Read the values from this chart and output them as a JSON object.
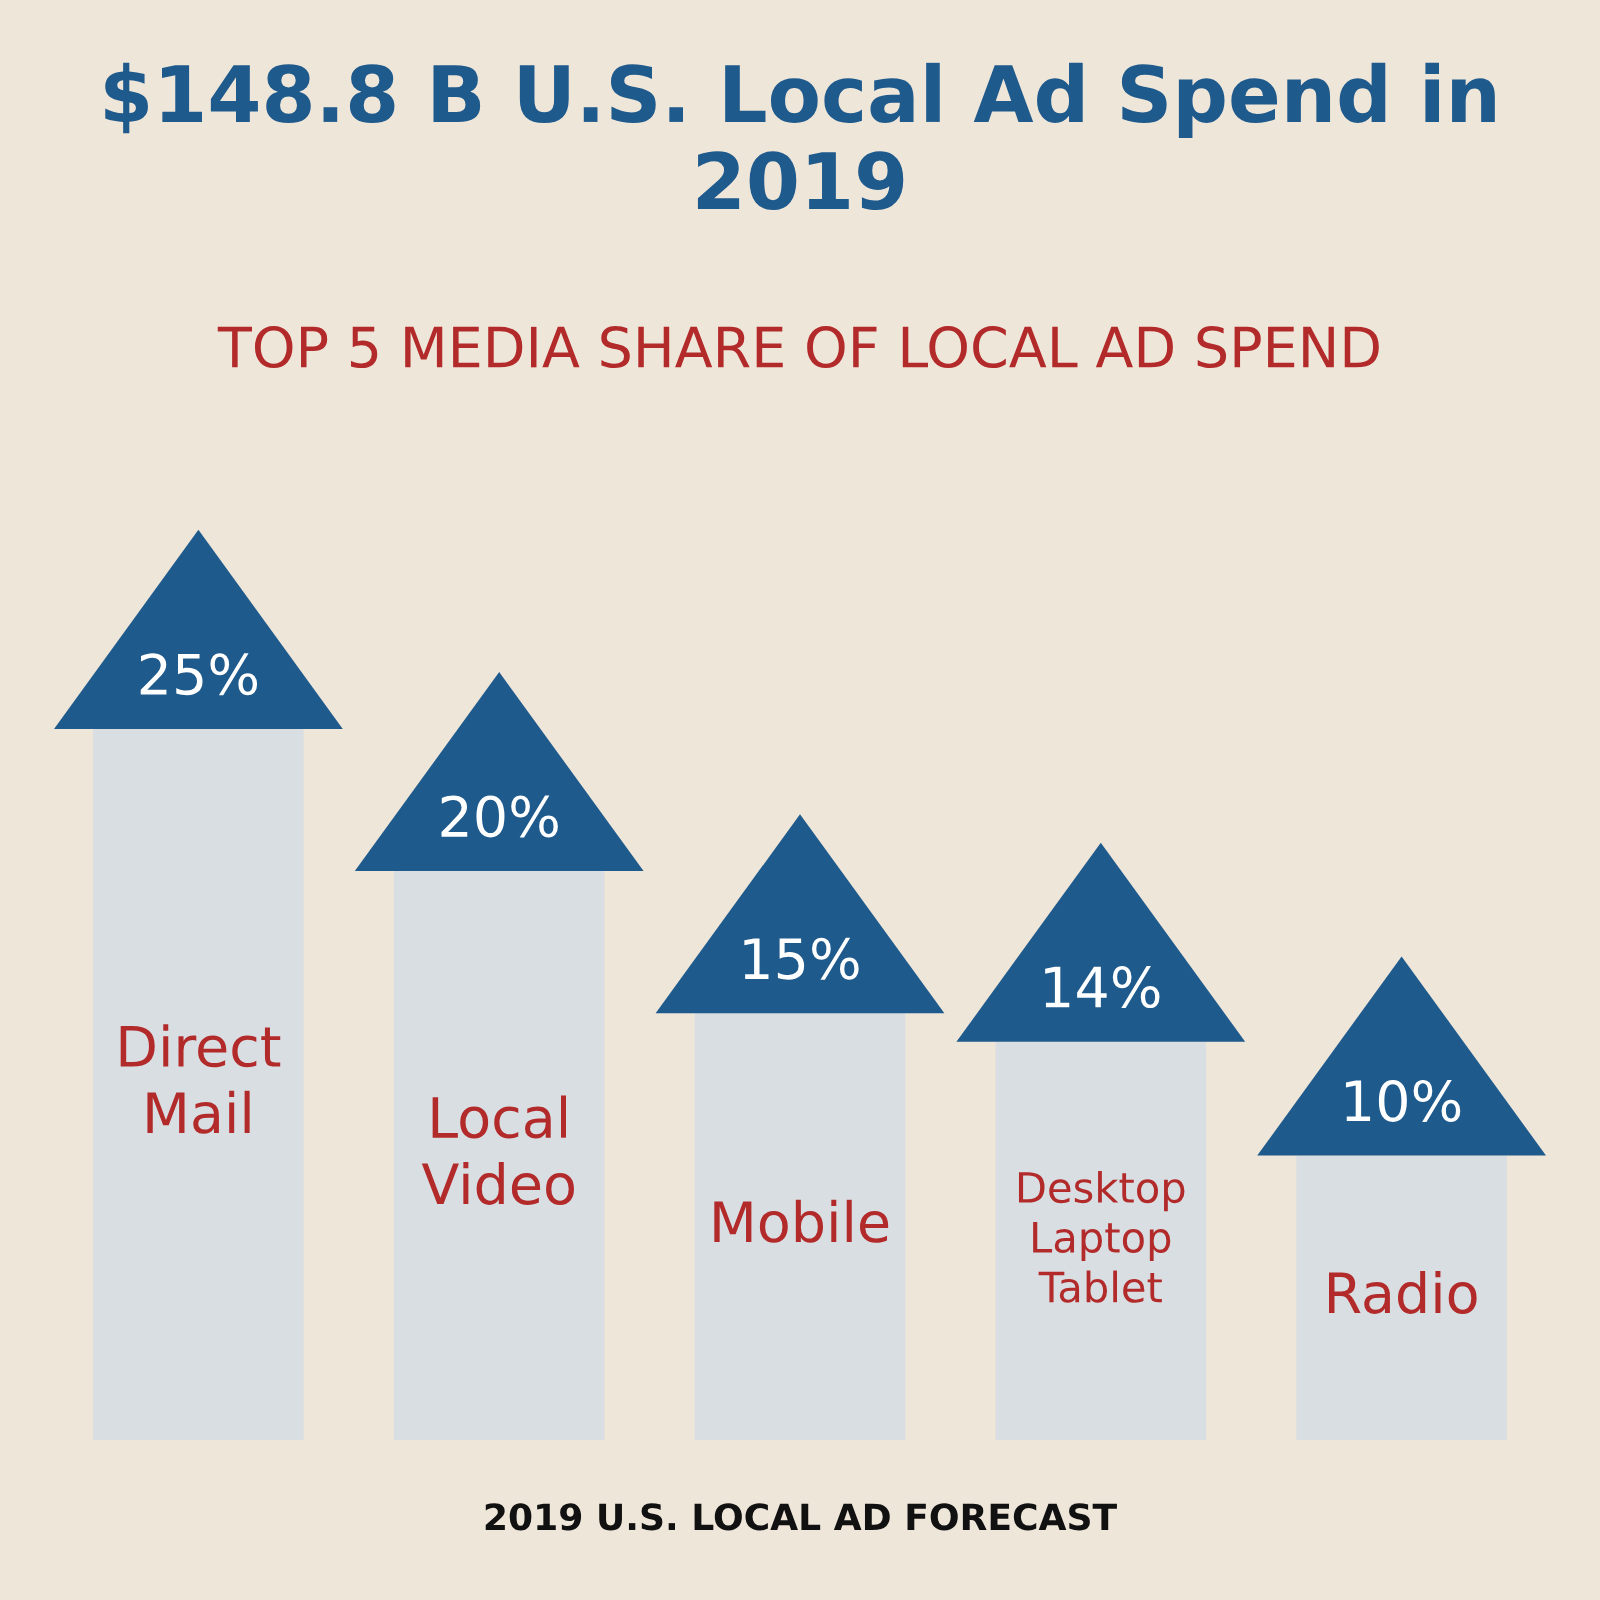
{
  "chart_data": {
    "type": "bar",
    "title": "$148.8 B U.S. Local Ad Spend in 2019",
    "subtitle": "TOP 5 MEDIA SHARE OF LOCAL AD SPEND",
    "categories": [
      "Direct Mail",
      "Local Video",
      "Mobile",
      "Desktop Laptop Tablet",
      "Radio"
    ],
    "values": [
      25,
      20,
      15,
      14,
      10
    ],
    "value_labels": [
      "25%",
      "20%",
      "15%",
      "14%",
      "10%"
    ],
    "color": "#d9dee2",
    "annotations": [
      "2019 U.S. LOCAL AD FORECAST"
    ]
  }
}
